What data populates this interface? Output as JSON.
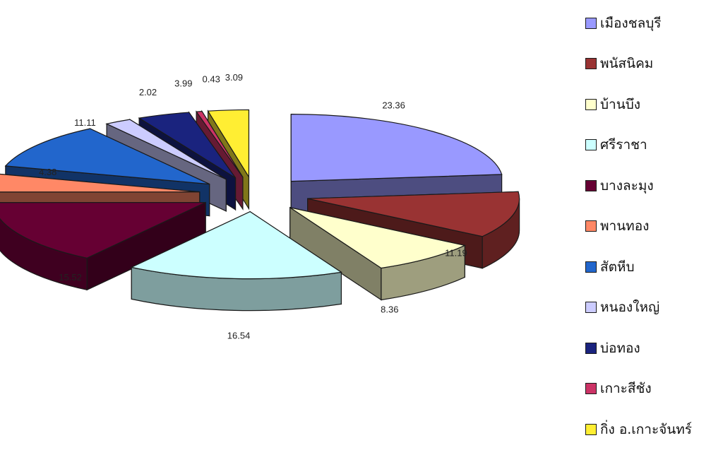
{
  "chart_data": {
    "type": "pie",
    "variant": "3d-exploded",
    "title": "",
    "legend_position": "right",
    "slices": [
      {
        "label": "เมืองชลบุรี",
        "value": 23.36,
        "value_label": "23.36",
        "color": "#9999ff"
      },
      {
        "label": "พนัสนิคม",
        "value": 11.19,
        "value_label": "11.19",
        "color": "#993333"
      },
      {
        "label": "บ้านบึง",
        "value": 8.36,
        "value_label": "8.36",
        "color": "#ffffcc"
      },
      {
        "label": "ศรีราชา",
        "value": 16.54,
        "value_label": "16.54",
        "color": "#ccffff"
      },
      {
        "label": "บางละมุง",
        "value": 15.52,
        "value_label": "15.52",
        "color": "#660033"
      },
      {
        "label": "พานทอง",
        "value": 4.38,
        "value_label": "4.38",
        "color": "#ff8866"
      },
      {
        "label": "สัตหีบ",
        "value": 11.11,
        "value_label": "11.11",
        "color": "#2266cc"
      },
      {
        "label": "หนองใหญ่",
        "value": 2.02,
        "value_label": "2.02",
        "color": "#ccccff"
      },
      {
        "label": "บ่อทอง",
        "value": 3.99,
        "value_label": "3.99",
        "color": "#1a237e"
      },
      {
        "label": "เกาะสีชัง",
        "value": 0.43,
        "value_label": "0.43",
        "color": "#cc3366"
      },
      {
        "label": "กิ่ง อ.เกาะจันทร์",
        "value": 3.09,
        "value_label": "3.09",
        "color": "#ffee33"
      }
    ]
  }
}
